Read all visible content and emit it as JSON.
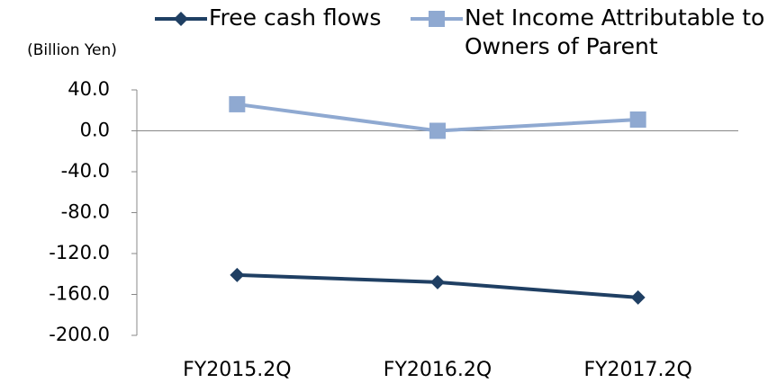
{
  "chart_data": {
    "type": "line",
    "y_label": "(Billion Yen)",
    "categories": [
      "FY2015.2Q",
      "FY2016.2Q",
      "FY2017.2Q"
    ],
    "series": [
      {
        "name": "Free cash flows",
        "color": "#1f3f63",
        "marker": "diamond",
        "values": [
          -141,
          -148,
          -163
        ]
      },
      {
        "name": "Net Income Attributable to Owners of Parent",
        "color": "#8fa9d1",
        "marker": "square",
        "values": [
          26,
          0,
          11
        ]
      }
    ],
    "ylim": [
      -200,
      40
    ],
    "yticks": [
      {
        "value": -200,
        "label": "-200.0"
      },
      {
        "value": -160,
        "label": "-160.0"
      },
      {
        "value": -120,
        "label": "-120.0"
      },
      {
        "value": -80,
        "label": "-80.0"
      },
      {
        "value": -40,
        "label": "-40.0"
      },
      {
        "value": 0,
        "label": "0.0"
      },
      {
        "value": 40,
        "label": "40.0"
      }
    ],
    "grid": false
  }
}
